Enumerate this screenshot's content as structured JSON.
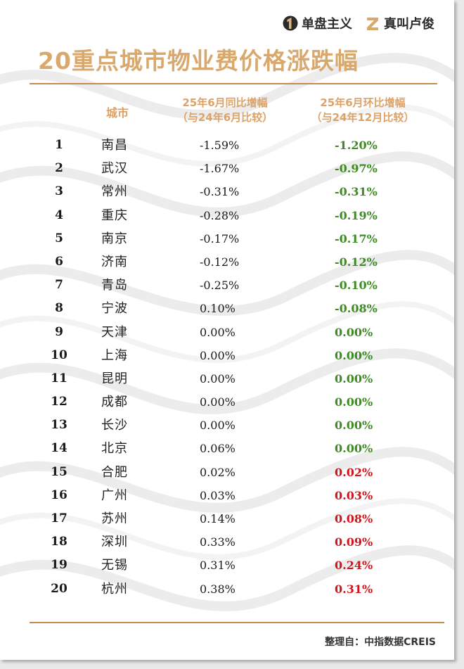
{
  "brand": {
    "left_name": "单盘主义",
    "right_name": "真叫卢俊",
    "left_icon": "one-badge-icon",
    "right_icon": "z-logo-icon"
  },
  "title": "20重点城市物业费价格涨跌幅",
  "headers": {
    "city": "城市",
    "yoy_line1": "25年6月同比增幅",
    "yoy_line2": "（与24年6月比较）",
    "mom_line1": "25年6月环比增幅",
    "mom_line2": "（与24年12月比较）"
  },
  "colors": {
    "accent": "#d9a86c",
    "rule": "#c28c51",
    "negative": "#3e8a24",
    "zero": "#3e8a24",
    "positive": "#d0161c"
  },
  "rows": [
    {
      "rank": "1",
      "city": "南昌",
      "yoy": "-1.59%",
      "mom": "-1.20%",
      "mom_sign": "negative"
    },
    {
      "rank": "2",
      "city": "武汉",
      "yoy": "-1.67%",
      "mom": "-0.97%",
      "mom_sign": "negative"
    },
    {
      "rank": "3",
      "city": "常州",
      "yoy": "-0.31%",
      "mom": "-0.31%",
      "mom_sign": "negative"
    },
    {
      "rank": "4",
      "city": "重庆",
      "yoy": "-0.28%",
      "mom": "-0.19%",
      "mom_sign": "negative"
    },
    {
      "rank": "5",
      "city": "南京",
      "yoy": "-0.17%",
      "mom": "-0.17%",
      "mom_sign": "negative"
    },
    {
      "rank": "6",
      "city": "济南",
      "yoy": "-0.12%",
      "mom": "-0.12%",
      "mom_sign": "negative"
    },
    {
      "rank": "7",
      "city": "青岛",
      "yoy": "-0.25%",
      "mom": "-0.10%",
      "mom_sign": "negative"
    },
    {
      "rank": "8",
      "city": "宁波",
      "yoy": "0.10%",
      "mom": "-0.08%",
      "mom_sign": "negative"
    },
    {
      "rank": "9",
      "city": "天津",
      "yoy": "0.00%",
      "mom": "0.00%",
      "mom_sign": "zero"
    },
    {
      "rank": "10",
      "city": "上海",
      "yoy": "0.00%",
      "mom": "0.00%",
      "mom_sign": "zero"
    },
    {
      "rank": "11",
      "city": "昆明",
      "yoy": "0.00%",
      "mom": "0.00%",
      "mom_sign": "zero"
    },
    {
      "rank": "12",
      "city": "成都",
      "yoy": "0.00%",
      "mom": "0.00%",
      "mom_sign": "zero"
    },
    {
      "rank": "13",
      "city": "长沙",
      "yoy": "0.00%",
      "mom": "0.00%",
      "mom_sign": "zero"
    },
    {
      "rank": "14",
      "city": "北京",
      "yoy": "0.06%",
      "mom": "0.00%",
      "mom_sign": "zero"
    },
    {
      "rank": "15",
      "city": "合肥",
      "yoy": "0.02%",
      "mom": "0.02%",
      "mom_sign": "positive"
    },
    {
      "rank": "16",
      "city": "广州",
      "yoy": "0.03%",
      "mom": "0.03%",
      "mom_sign": "positive"
    },
    {
      "rank": "17",
      "city": "苏州",
      "yoy": "0.14%",
      "mom": "0.08%",
      "mom_sign": "positive"
    },
    {
      "rank": "18",
      "city": "深圳",
      "yoy": "0.33%",
      "mom": "0.09%",
      "mom_sign": "positive"
    },
    {
      "rank": "19",
      "city": "无锡",
      "yoy": "0.31%",
      "mom": "0.24%",
      "mom_sign": "positive"
    },
    {
      "rank": "20",
      "city": "杭州",
      "yoy": "0.38%",
      "mom": "0.31%",
      "mom_sign": "positive"
    }
  ],
  "footer": "整理自：中指数据CREIS"
}
